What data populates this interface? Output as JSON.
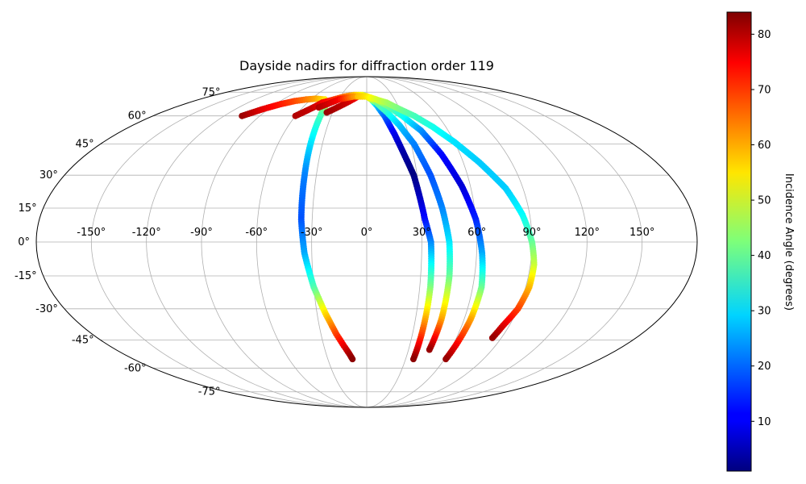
{
  "chart_data": {
    "type": "scatter",
    "projection": "mollweide",
    "title": "Dayside nadirs for diffraction order 119",
    "grid": true,
    "x_tick_labels": [
      "-150°",
      "-120°",
      "-90°",
      "-60°",
      "-30°",
      "0°",
      "30°",
      "60°",
      "90°",
      "120°",
      "150°"
    ],
    "x_tick_values": [
      -150,
      -120,
      -90,
      -60,
      -30,
      0,
      30,
      60,
      90,
      120,
      150
    ],
    "y_tick_labels": [
      "-75°",
      "-60°",
      "-45°",
      "-30°",
      "-15°",
      "0°",
      "15°",
      "30°",
      "45°",
      "60°",
      "75°"
    ],
    "y_tick_values": [
      -75,
      -60,
      -45,
      -30,
      -15,
      0,
      15,
      30,
      45,
      60,
      75
    ],
    "xlim": [
      -180,
      180
    ],
    "ylim": [
      -90,
      90
    ],
    "colorbar": {
      "label": "Incidence Angle (degrees)",
      "min": 1,
      "max": 84,
      "colormap": "jet",
      "tick_labels": [
        "10",
        "20",
        "30",
        "40",
        "50",
        "60",
        "70",
        "80"
      ],
      "tick_values": [
        10,
        20,
        30,
        40,
        50,
        60,
        70,
        80
      ]
    },
    "series": [
      {
        "lon": [
          -105,
          -95,
          -85,
          -75,
          -65,
          -55,
          -45,
          -40,
          -39,
          -38,
          -37,
          -36,
          -34,
          -30,
          -25,
          -20,
          -16,
          -13,
          -11
        ],
        "lat": [
          60,
          64,
          67,
          69,
          70,
          70.5,
          70,
          68,
          60,
          45,
          30,
          10,
          -5,
          -20,
          -32,
          -42,
          -48,
          -52,
          -55
        ],
        "incidence": [
          82,
          76,
          72,
          68,
          64,
          60,
          55,
          50,
          38,
          30,
          22,
          18,
          25,
          38,
          55,
          68,
          75,
          80,
          83
        ]
      },
      {
        "lon": [
          -60,
          -50,
          -45,
          -35,
          -25,
          -15,
          -5,
          0,
          5,
          10,
          15,
          20,
          24,
          28,
          30,
          32,
          35,
          36,
          36
        ],
        "lat": [
          60,
          65,
          68,
          70,
          72,
          73,
          73,
          72,
          70,
          66,
          60,
          50,
          40,
          30,
          20,
          10,
          0,
          -20,
          -55
        ],
        "incidence": [
          80,
          78,
          75,
          70,
          65,
          58,
          52,
          46,
          38,
          28,
          20,
          10,
          4,
          1,
          6,
          12,
          22,
          42,
          83
        ]
      },
      {
        "lon": [
          -35,
          -20,
          -10,
          0,
          10,
          18,
          25,
          32,
          38,
          42,
          45,
          46,
          46,
          45
        ],
        "lat": [
          62,
          68,
          72,
          72,
          68,
          62,
          55,
          45,
          30,
          15,
          0,
          -15,
          -35,
          -50
        ],
        "incidence": [
          82,
          78,
          74,
          56,
          42,
          36,
          28,
          22,
          18,
          22,
          30,
          40,
          60,
          82
        ]
      },
      {
        "lon": [
          -45,
          -30,
          -15,
          0,
          10,
          20,
          30,
          40,
          48,
          55,
          60,
          63,
          65,
          64,
          61
        ],
        "lat": [
          65,
          70,
          72,
          72,
          70,
          66,
          60,
          52,
          40,
          25,
          10,
          -5,
          -20,
          -35,
          -55
        ],
        "incidence": [
          80,
          74,
          62,
          55,
          48,
          42,
          34,
          24,
          12,
          8,
          14,
          25,
          40,
          60,
          82
        ]
      },
      {
        "lon": [
          -10,
          0,
          10,
          20,
          30,
          40,
          50,
          60,
          70,
          80,
          86,
          90,
          92,
          92,
          90,
          86,
          84
        ],
        "lat": [
          72,
          72,
          70,
          68,
          64,
          60,
          54,
          46,
          36,
          24,
          12,
          0,
          -10,
          -20,
          -30,
          -38,
          -44
        ],
        "incidence": [
          58,
          55,
          50,
          46,
          42,
          38,
          34,
          30,
          28,
          28,
          32,
          40,
          48,
          58,
          68,
          76,
          82
        ]
      }
    ]
  }
}
